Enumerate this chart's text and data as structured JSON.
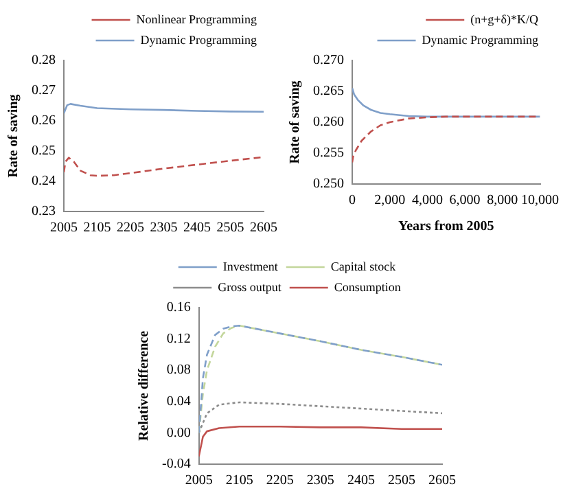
{
  "chart_data": [
    {
      "type": "line",
      "ylabel": "Rate of saving",
      "xlim": [
        2005,
        2605
      ],
      "xticks": [
        2005,
        2105,
        2205,
        2305,
        2405,
        2505,
        2605
      ],
      "ylim": [
        0.23,
        0.28
      ],
      "yticks": [
        0.23,
        0.24,
        0.25,
        0.26,
        0.27,
        0.28
      ],
      "grid": false,
      "legend": "top right",
      "marker": "none",
      "series": [
        {
          "name": "Nonlinear Programming",
          "color": "#c0504d",
          "line_style": "dashed",
          "x": [
            2005,
            2010,
            2020,
            2035,
            2055,
            2085,
            2105,
            2155,
            2205,
            2305,
            2405,
            2505,
            2605
          ],
          "values": [
            0.243,
            0.2465,
            0.2478,
            0.2465,
            0.2435,
            0.242,
            0.2418,
            0.242,
            0.2427,
            0.2442,
            0.2455,
            0.2468,
            0.248
          ]
        },
        {
          "name": "Dynamic Programming",
          "color": "#7f9fc9",
          "line_style": "solid",
          "x": [
            2005,
            2015,
            2025,
            2055,
            2105,
            2205,
            2305,
            2405,
            2505,
            2605
          ],
          "values": [
            0.2625,
            0.2652,
            0.2656,
            0.265,
            0.2642,
            0.2638,
            0.2636,
            0.2633,
            0.2631,
            0.263
          ]
        }
      ]
    },
    {
      "type": "line",
      "ylabel": "Rate of saving",
      "xlabel": "Years from 2005",
      "xlim": [
        0,
        10000
      ],
      "xticks": [
        0,
        {
          "value": 2000,
          "label": "2,000"
        },
        {
          "value": 4000,
          "label": "4,000"
        },
        {
          "value": 6000,
          "label": "6,000"
        },
        {
          "value": 8000,
          "label": "8,000"
        },
        {
          "value": 10000,
          "label": "10,000"
        }
      ],
      "ylim": [
        0.25,
        0.27
      ],
      "yticks": [
        {
          "value": 0.25,
          "label": "0.250"
        },
        {
          "value": 0.255,
          "label": "0.255"
        },
        {
          "value": 0.26,
          "label": "0.260"
        },
        {
          "value": 0.265,
          "label": "0.265"
        },
        {
          "value": 0.27,
          "label": "0.270"
        }
      ],
      "grid": false,
      "legend": "top right",
      "marker": "none",
      "series": [
        {
          "name": "(n+g+δ)*K/Q",
          "color": "#c0504d",
          "line_style": "dashed",
          "x": [
            0,
            50,
            200,
            500,
            1000,
            1500,
            2000,
            3000,
            4000,
            5000,
            10000
          ],
          "values": [
            0.2535,
            0.2545,
            0.2555,
            0.257,
            0.2585,
            0.2595,
            0.26,
            0.2606,
            0.2608,
            0.2609,
            0.2609
          ]
        },
        {
          "name": "Dynamic Programming",
          "color": "#7f9fc9",
          "line_style": "solid",
          "x": [
            0,
            100,
            300,
            600,
            1000,
            1500,
            2000,
            3000,
            4000,
            10000
          ],
          "values": [
            0.2655,
            0.2645,
            0.2636,
            0.2627,
            0.262,
            0.2615,
            0.2613,
            0.261,
            0.2609,
            0.2609
          ]
        }
      ]
    },
    {
      "type": "line",
      "ylabel": "Relative difference",
      "xlim": [
        2005,
        2605
      ],
      "xticks": [
        2005,
        2105,
        2205,
        2305,
        2405,
        2505,
        2605
      ],
      "ylim": [
        -0.04,
        0.16
      ],
      "yticks": [
        {
          "value": -0.04,
          "label": "-0.04"
        },
        {
          "value": 0,
          "label": "0.00"
        },
        {
          "value": 0.04,
          "label": "0.04"
        },
        {
          "value": 0.08,
          "label": "0.08"
        },
        {
          "value": 0.12,
          "label": "0.12"
        },
        {
          "value": 0.16,
          "label": "0.16"
        }
      ],
      "grid": false,
      "legend": "top",
      "marker": "none",
      "series": [
        {
          "name": "Investment",
          "color": "#7f9fc9",
          "line_style": "dashed",
          "x": [
            2005,
            2015,
            2025,
            2045,
            2065,
            2085,
            2105,
            2205,
            2305,
            2405,
            2505,
            2605
          ],
          "values": [
            0.0,
            0.07,
            0.1,
            0.125,
            0.133,
            0.136,
            0.137,
            0.127,
            0.117,
            0.106,
            0.097,
            0.087
          ]
        },
        {
          "name": "Capital stock",
          "color": "#c3d69b",
          "line_style": "dashed",
          "x": [
            2005,
            2015,
            2025,
            2045,
            2065,
            2085,
            2105,
            2205,
            2305,
            2405,
            2505,
            2605
          ],
          "values": [
            0.0,
            0.05,
            0.08,
            0.11,
            0.127,
            0.134,
            0.137,
            0.127,
            0.117,
            0.106,
            0.097,
            0.087
          ]
        },
        {
          "name": "Gross output",
          "color": "#8c8c8c",
          "line_style": "dotted",
          "x": [
            2005,
            2025,
            2055,
            2105,
            2205,
            2305,
            2405,
            2505,
            2605
          ],
          "values": [
            0.0,
            0.025,
            0.036,
            0.039,
            0.037,
            0.034,
            0.031,
            0.028,
            0.025
          ]
        },
        {
          "name": "Consumption",
          "color": "#c0504d",
          "line_style": "solid",
          "x": [
            2005,
            2015,
            2025,
            2055,
            2105,
            2205,
            2305,
            2405,
            2505,
            2605
          ],
          "values": [
            -0.03,
            -0.005,
            0.002,
            0.006,
            0.008,
            0.008,
            0.007,
            0.007,
            0.005,
            0.005
          ]
        }
      ]
    }
  ]
}
